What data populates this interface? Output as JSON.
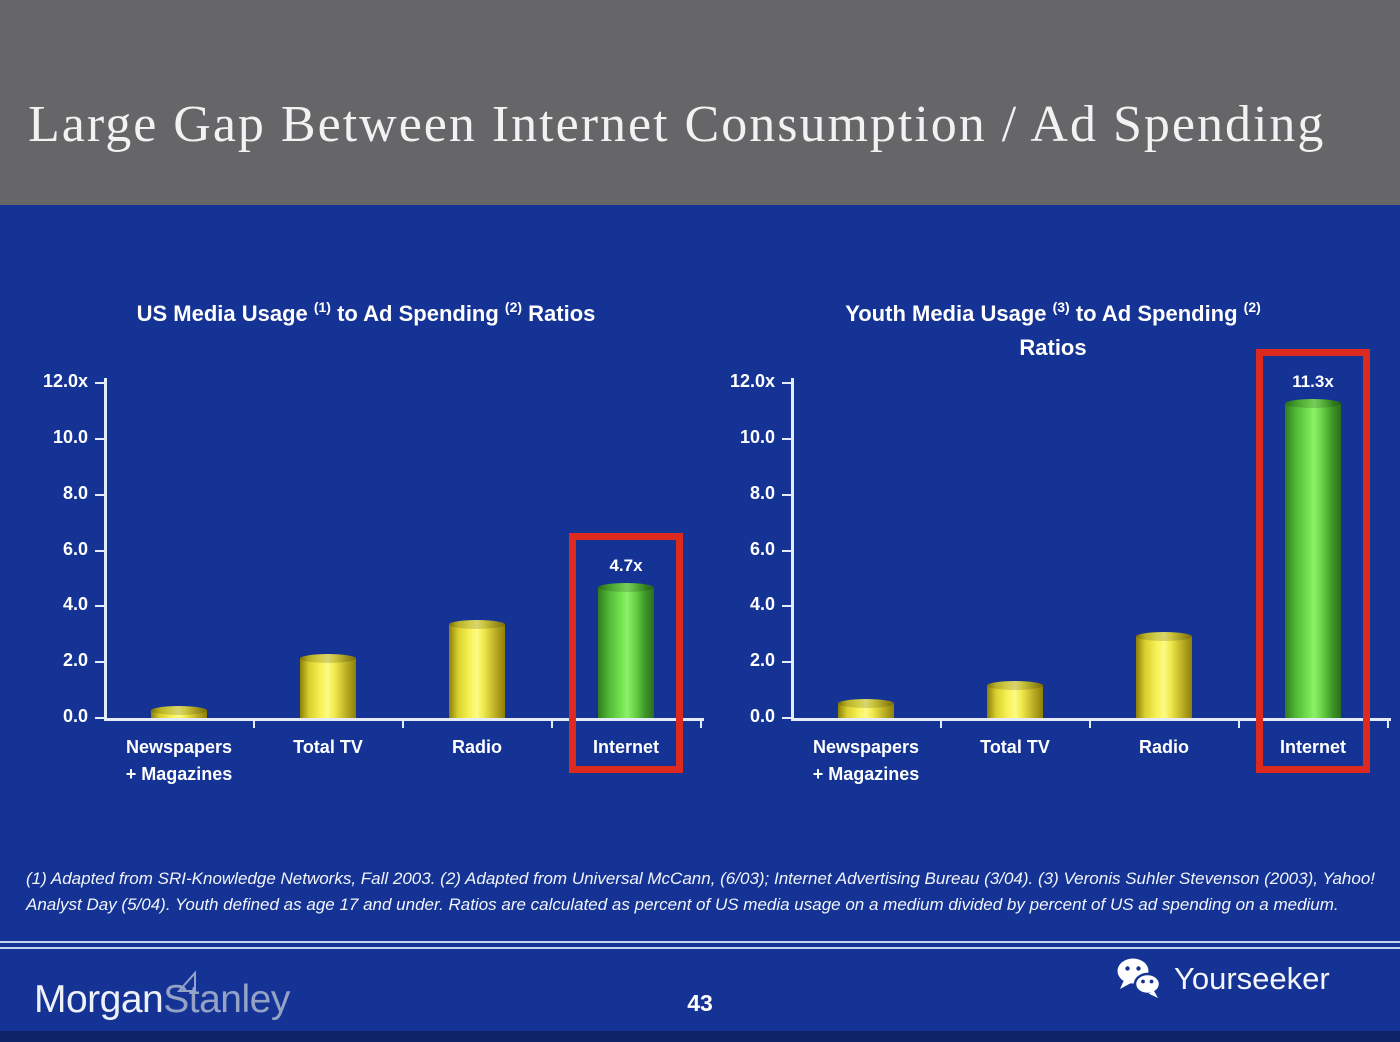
{
  "header": {
    "title": "Large Gap Between Internet Consumption / Ad Spending"
  },
  "chart_data": [
    {
      "type": "bar",
      "title": "US Media Usage (1) to Ad Spending (2) Ratios",
      "title_parts": [
        {
          "text": "US Media Usage "
        },
        {
          "sup": "(1)"
        },
        {
          "text": " to Ad Spending "
        },
        {
          "sup": "(2)"
        },
        {
          "text": " Ratios"
        }
      ],
      "categories": [
        "Newspapers\n+ Magazines",
        "Total TV",
        "Radio",
        "Internet"
      ],
      "values": [
        0.3,
        2.15,
        3.35,
        4.7
      ],
      "bar_colors": [
        "yellow",
        "yellow",
        "yellow",
        "green"
      ],
      "value_labels": [
        null,
        null,
        null,
        "4.7x"
      ],
      "highlight_index": 3,
      "ylim": [
        0,
        12
      ],
      "y_ticks": [
        {
          "label": "12.0x",
          "value": 12
        },
        {
          "label": "10.0",
          "value": 10
        },
        {
          "label": "8.0",
          "value": 8
        },
        {
          "label": "6.0",
          "value": 6
        },
        {
          "label": "4.0",
          "value": 4
        },
        {
          "label": "2.0",
          "value": 2
        },
        {
          "label": "0.0",
          "value": 0
        }
      ],
      "grid": false,
      "legend": false
    },
    {
      "type": "bar",
      "title": "Youth Media Usage (3) to Ad Spending (2) Ratios",
      "title_parts": [
        {
          "text": "Youth Media Usage "
        },
        {
          "sup": "(3)"
        },
        {
          "text": " to Ad Spending "
        },
        {
          "sup": "(2)"
        },
        {
          "br": true
        },
        {
          "text": "Ratios"
        }
      ],
      "categories": [
        "Newspapers\n+ Magazines",
        "Total TV",
        "Radio",
        "Internet"
      ],
      "values": [
        0.55,
        1.2,
        2.95,
        11.3
      ],
      "bar_colors": [
        "yellow",
        "yellow",
        "yellow",
        "green"
      ],
      "value_labels": [
        null,
        null,
        null,
        "11.3x"
      ],
      "highlight_index": 3,
      "ylim": [
        0,
        12
      ],
      "y_ticks": [
        {
          "label": "12.0x",
          "value": 12
        },
        {
          "label": "10.0",
          "value": 10
        },
        {
          "label": "8.0",
          "value": 8
        },
        {
          "label": "6.0",
          "value": 6
        },
        {
          "label": "4.0",
          "value": 4
        },
        {
          "label": "2.0",
          "value": 2
        },
        {
          "label": "0.0",
          "value": 0
        }
      ],
      "grid": false,
      "legend": false
    }
  ],
  "footnote": "(1) Adapted from SRI-Knowledge Networks, Fall 2003.  (2) Adapted from Universal McCann, (6/03); Internet Advertising Bureau (3/04). (3) Veronis Suhler Stevenson (2003), Yahoo! Analyst Day (5/04).  Youth defined as age 17 and under.  Ratios are calculated as percent of US media usage on a medium divided by percent of US ad spending on a medium.",
  "footer": {
    "page_number": "43",
    "brand_left_part1": "Morgan",
    "brand_left_part2": "Stanley",
    "brand_right": "Yourseeker"
  },
  "colors": {
    "header_bg": "#666668",
    "body_bg": "#143394",
    "bar_yellow": "#f2ec4a",
    "bar_green": "#63d23e",
    "highlight_red": "#dc2a1f",
    "axis_line": "#e4ebfb"
  }
}
